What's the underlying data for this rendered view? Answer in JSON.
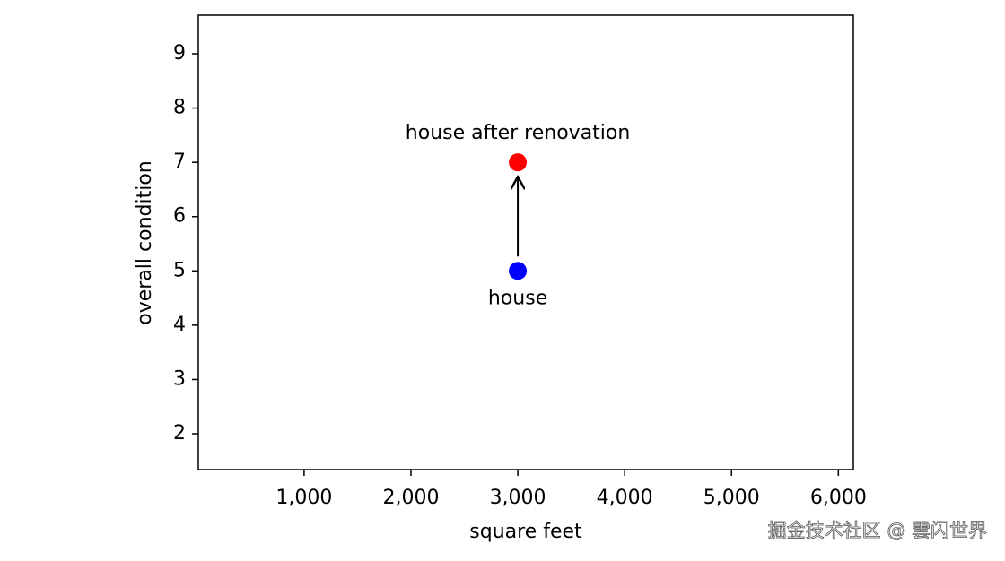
{
  "chart_data": {
    "type": "scatter",
    "x_label": "square feet",
    "y_label": "overall condition",
    "x": [
      3000,
      3000
    ],
    "values": [
      5,
      7
    ],
    "colors": [
      "#0000ff",
      "#ff0000"
    ],
    "point_labels": [
      "house",
      "house after renovation"
    ],
    "xlim": [
      10,
      6140
    ],
    "ylim": [
      1.34,
      9.71
    ],
    "xticks": [
      {
        "value": 1000,
        "label": "1,000"
      },
      {
        "value": 2000,
        "label": "2,000"
      },
      {
        "value": 3000,
        "label": "3,000"
      },
      {
        "value": 4000,
        "label": "4,000"
      },
      {
        "value": 5000,
        "label": "5,000"
      },
      {
        "value": 6000,
        "label": "6,000"
      }
    ],
    "yticks": [
      2,
      3,
      4,
      5,
      6,
      7,
      8,
      9
    ],
    "grid": false
  },
  "watermark": "掘金技术社区 @ 雲闪世界"
}
